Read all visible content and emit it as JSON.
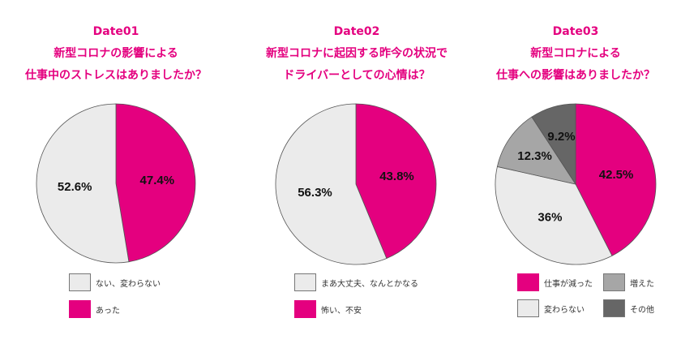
{
  "colors": {
    "accent": "#e4007f",
    "light": "#ebebeb",
    "mid": "#a6a6a6",
    "dark": "#666666"
  },
  "chart_data": [
    {
      "type": "pie",
      "title": "Date01",
      "subtitle": [
        "新型コロナの影響による",
        "仕事中のストレスはありましたか？"
      ],
      "slices": [
        {
          "label": "あった",
          "value": 47.4,
          "display": "47.4%",
          "color": "#e4007f"
        },
        {
          "label": "ない、変わらない",
          "value": 52.6,
          "display": "52.6%",
          "color": "#ebebeb"
        }
      ],
      "legend": [
        {
          "label": "ない、変わらない",
          "color": "#ebebeb"
        },
        {
          "label": "あった",
          "color": "#e4007f"
        }
      ]
    },
    {
      "type": "pie",
      "title": "Date02",
      "subtitle": [
        "新型コロナに起因する昨今の状況で",
        "ドライバーとしての心情は？"
      ],
      "slices": [
        {
          "label": "怖い、不安",
          "value": 43.8,
          "display": "43.8%",
          "color": "#e4007f"
        },
        {
          "label": "まあ大丈夫、なんとかなる",
          "value": 56.3,
          "display": "56.3%",
          "color": "#ebebeb"
        }
      ],
      "legend": [
        {
          "label": "まあ大丈夫、なんとかなる",
          "color": "#ebebeb"
        },
        {
          "label": "怖い、不安",
          "color": "#e4007f"
        }
      ]
    },
    {
      "type": "pie",
      "title": "Date03",
      "subtitle": [
        "新型コロナによる",
        "仕事への影響はありましたか？"
      ],
      "slices": [
        {
          "label": "仕事が減った",
          "value": 42.5,
          "display": "42.5%",
          "color": "#e4007f"
        },
        {
          "label": "変わらない",
          "value": 36,
          "display": "36%",
          "color": "#ebebeb"
        },
        {
          "label": "増えた",
          "value": 12.3,
          "display": "12.3%",
          "color": "#a6a6a6"
        },
        {
          "label": "その他",
          "value": 9.2,
          "display": "9.2%",
          "color": "#666666"
        }
      ],
      "legend": [
        {
          "label": "仕事が減った",
          "color": "#e4007f"
        },
        {
          "label": "増えた",
          "color": "#a6a6a6"
        },
        {
          "label": "変わらない",
          "color": "#ebebeb"
        },
        {
          "label": "その他",
          "color": "#666666"
        }
      ]
    }
  ]
}
